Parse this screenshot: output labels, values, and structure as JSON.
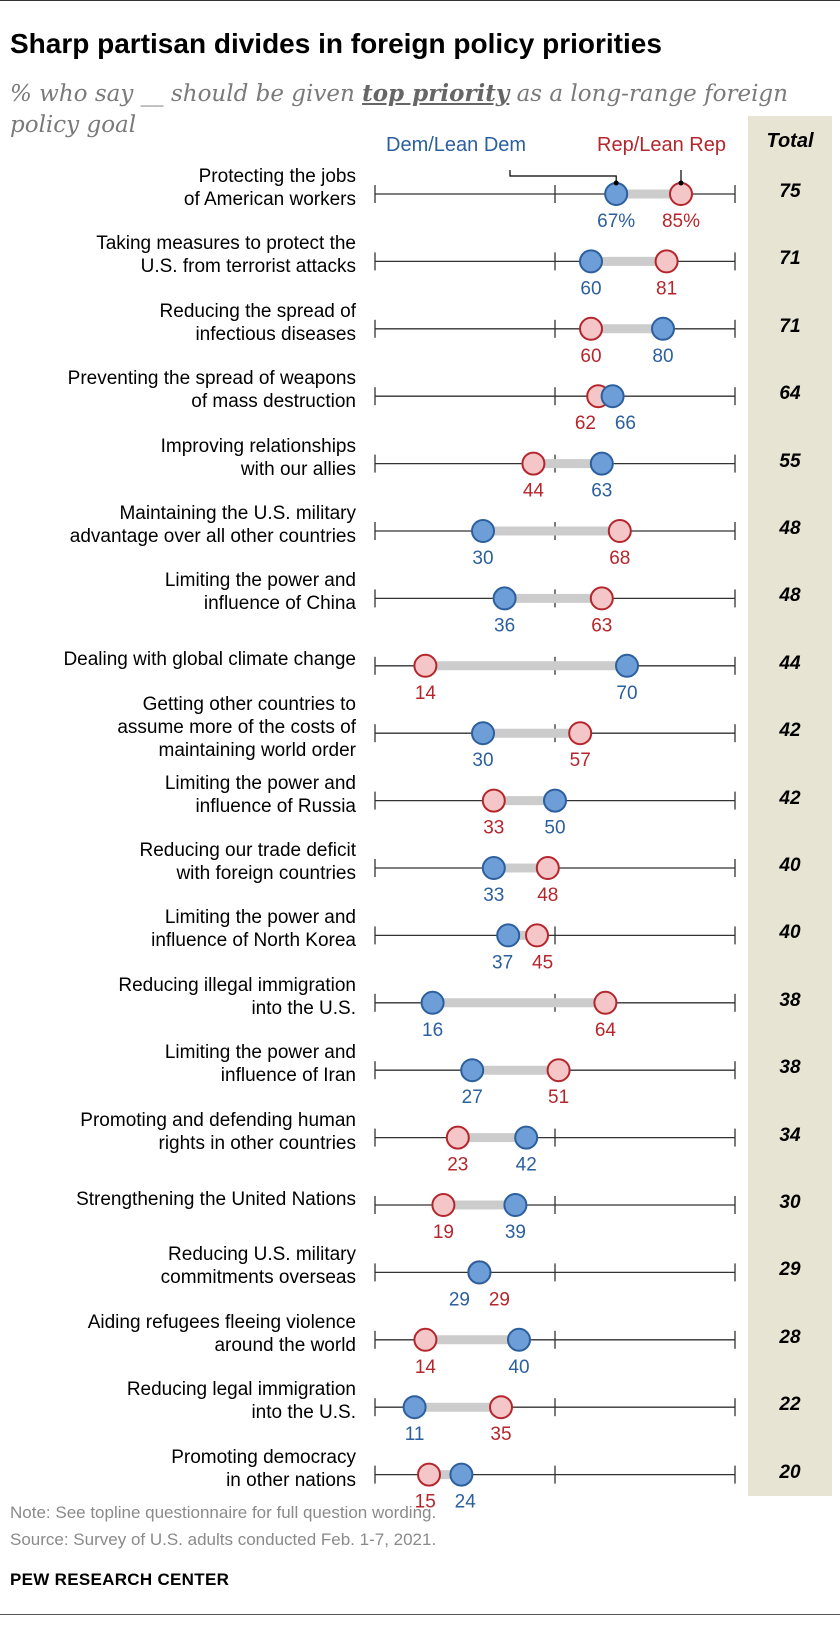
{
  "header": {
    "title": "Sharp partisan divides in foreign policy priorities",
    "subtitle_pre": "% who say __ should be given ",
    "subtitle_em": "top priority",
    "subtitle_post": " as a long-range foreign policy goal"
  },
  "legend": {
    "dem": "Dem/Lean Dem",
    "rep": "Rep/Lean Rep",
    "total": "Total"
  },
  "colors": {
    "dem_fill": "#6d9ed8",
    "dem_stroke": "#2c5f9e",
    "rep_fill": "#f5c6c8",
    "rep_stroke": "#b5262c",
    "connector": "#cccccc",
    "axis": "#333333"
  },
  "chart_data": {
    "type": "dot",
    "xlim": [
      0,
      100
    ],
    "ticks": [
      0,
      50,
      100
    ],
    "value_suffix_first_row": "%",
    "series": [
      {
        "name": "Dem/Lean Dem",
        "key": "dem"
      },
      {
        "name": "Rep/Lean Rep",
        "key": "rep"
      }
    ],
    "rows": [
      {
        "label": [
          "Protecting the jobs",
          "of American workers"
        ],
        "dem": 67,
        "rep": 85,
        "total": 75
      },
      {
        "label": [
          "Taking measures to protect the",
          "U.S. from terrorist attacks"
        ],
        "dem": 60,
        "rep": 81,
        "total": 71
      },
      {
        "label": [
          "Reducing the spread of",
          "infectious diseases"
        ],
        "dem": 80,
        "rep": 60,
        "total": 71
      },
      {
        "label": [
          "Preventing the spread of weapons",
          "of mass destruction"
        ],
        "dem": 66,
        "rep": 62,
        "total": 64
      },
      {
        "label": [
          "Improving relationships",
          "with our allies"
        ],
        "dem": 63,
        "rep": 44,
        "total": 55
      },
      {
        "label": [
          "Maintaining the U.S. military",
          "advantage over all other countries"
        ],
        "dem": 30,
        "rep": 68,
        "total": 48
      },
      {
        "label": [
          "Limiting the power and",
          "influence of China"
        ],
        "dem": 36,
        "rep": 63,
        "total": 48
      },
      {
        "label": [
          "Dealing with global climate change"
        ],
        "dem": 70,
        "rep": 14,
        "total": 44
      },
      {
        "label": [
          "Getting other countries to",
          "assume more of the costs of",
          "maintaining world order"
        ],
        "dem": 30,
        "rep": 57,
        "total": 42
      },
      {
        "label": [
          "Limiting the power and",
          "influence of Russia"
        ],
        "dem": 50,
        "rep": 33,
        "total": 42
      },
      {
        "label": [
          "Reducing our trade deficit",
          "with foreign countries"
        ],
        "dem": 33,
        "rep": 48,
        "total": 40
      },
      {
        "label": [
          "Limiting the power and",
          "influence of North Korea"
        ],
        "dem": 37,
        "rep": 45,
        "total": 40
      },
      {
        "label": [
          "Reducing illegal immigration",
          "into the U.S."
        ],
        "dem": 16,
        "rep": 64,
        "total": 38
      },
      {
        "label": [
          "Limiting the power and",
          "influence of Iran"
        ],
        "dem": 27,
        "rep": 51,
        "total": 38
      },
      {
        "label": [
          "Promoting and defending human",
          "rights in other countries"
        ],
        "dem": 42,
        "rep": 23,
        "total": 34
      },
      {
        "label": [
          "Strengthening the United Nations"
        ],
        "dem": 39,
        "rep": 19,
        "total": 30
      },
      {
        "label": [
          "Reducing U.S. military",
          "commitments overseas"
        ],
        "dem": 29,
        "rep": 29,
        "total": 29
      },
      {
        "label": [
          "Aiding refugees fleeing violence",
          "around the world"
        ],
        "dem": 40,
        "rep": 14,
        "total": 28
      },
      {
        "label": [
          "Reducing legal immigration",
          "into the U.S."
        ],
        "dem": 11,
        "rep": 35,
        "total": 22
      },
      {
        "label": [
          "Promoting democracy",
          "in other nations"
        ],
        "dem": 24,
        "rep": 15,
        "total": 20
      }
    ]
  },
  "footer": {
    "note": "Note: See topline questionnaire for full question wording.",
    "source": "Source: Survey of U.S. adults conducted Feb. 1-7, 2021.",
    "brand": "PEW RESEARCH CENTER"
  }
}
